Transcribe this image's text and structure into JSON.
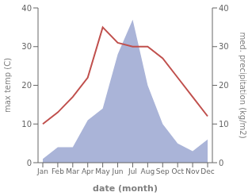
{
  "chart_data": {
    "type": "line",
    "xlabel": "date (month)",
    "ylabel": "max temp (C)",
    "y2label": "med. precipitation (kg/m2)",
    "categories": [
      "Jan",
      "Feb",
      "Mar",
      "Apr",
      "May",
      "Jun",
      "Jul",
      "Aug",
      "Sep",
      "Oct",
      "Nov",
      "Dec"
    ],
    "series": [
      {
        "type": "area",
        "axis": "y2",
        "color": "#aab4d8",
        "values": [
          1,
          4,
          4,
          11,
          14,
          28,
          37,
          20,
          10,
          5,
          3,
          6
        ]
      },
      {
        "type": "line",
        "color": "#c0504d",
        "values": [
          10,
          13,
          17,
          22,
          35,
          31,
          30,
          30,
          27,
          22,
          17,
          12
        ]
      }
    ],
    "ylim": [
      0,
      40
    ],
    "yticks": [
      0,
      10,
      20,
      30,
      40
    ],
    "y2lim": [
      0,
      40
    ],
    "y2ticks": [
      0,
      10,
      20,
      30,
      40
    ]
  }
}
